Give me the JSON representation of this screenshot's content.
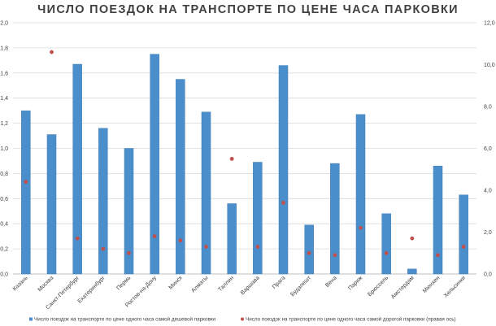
{
  "chart_data": {
    "type": "bar",
    "title": "ЧИСЛО ПОЕЗДОК НА ТРАНСПОРТЕ ПО ЦЕНЕ ЧАСА ПАРКОВКИ",
    "categories": [
      "Казань",
      "Москва",
      "Санкт-Петербург",
      "Екатеринбург",
      "Пермь",
      "Ростов-на-Дону",
      "Минск",
      "Алматы",
      "Таллин",
      "Варшава",
      "Прага",
      "Будапешт",
      "Вена",
      "Париж",
      "Брюссель",
      "Амстердам",
      "Мюнхен",
      "Хельсинки"
    ],
    "series": [
      {
        "name": "Число поездок на транспорте по цене одного часа самой дешевой парковки",
        "type": "bar",
        "axis": "left",
        "color": "#4a8fcb",
        "values": [
          1.3,
          1.11,
          1.67,
          1.16,
          1.0,
          1.75,
          1.55,
          1.29,
          0.56,
          0.89,
          1.66,
          0.39,
          0.88,
          1.27,
          0.48,
          0.04,
          0.86,
          0.63
        ]
      },
      {
        "name": "Число поездок на транспорте по цене одного часа самой дорогой парковки (правая ось)",
        "type": "scatter",
        "axis": "right",
        "color": "#c0504d",
        "values": [
          4.4,
          10.6,
          1.7,
          1.2,
          1.0,
          1.8,
          1.6,
          1.3,
          5.5,
          1.3,
          3.4,
          1.0,
          0.9,
          2.2,
          1.0,
          1.7,
          0.9,
          1.3
        ]
      }
    ],
    "y_left": {
      "ylim": [
        0,
        2.0
      ],
      "ticks": [
        "0,0",
        "0,2",
        "0,4",
        "0,6",
        "0,8",
        "1,0",
        "1,2",
        "1,4",
        "1,6",
        "1,8",
        "2,0"
      ]
    },
    "y_right": {
      "ylim": [
        0,
        12.0
      ],
      "ticks": [
        "0,0",
        "2,0",
        "4,0",
        "6,0",
        "8,0",
        "10,0",
        "12,0"
      ]
    },
    "grid": true,
    "legend": "bottom"
  }
}
